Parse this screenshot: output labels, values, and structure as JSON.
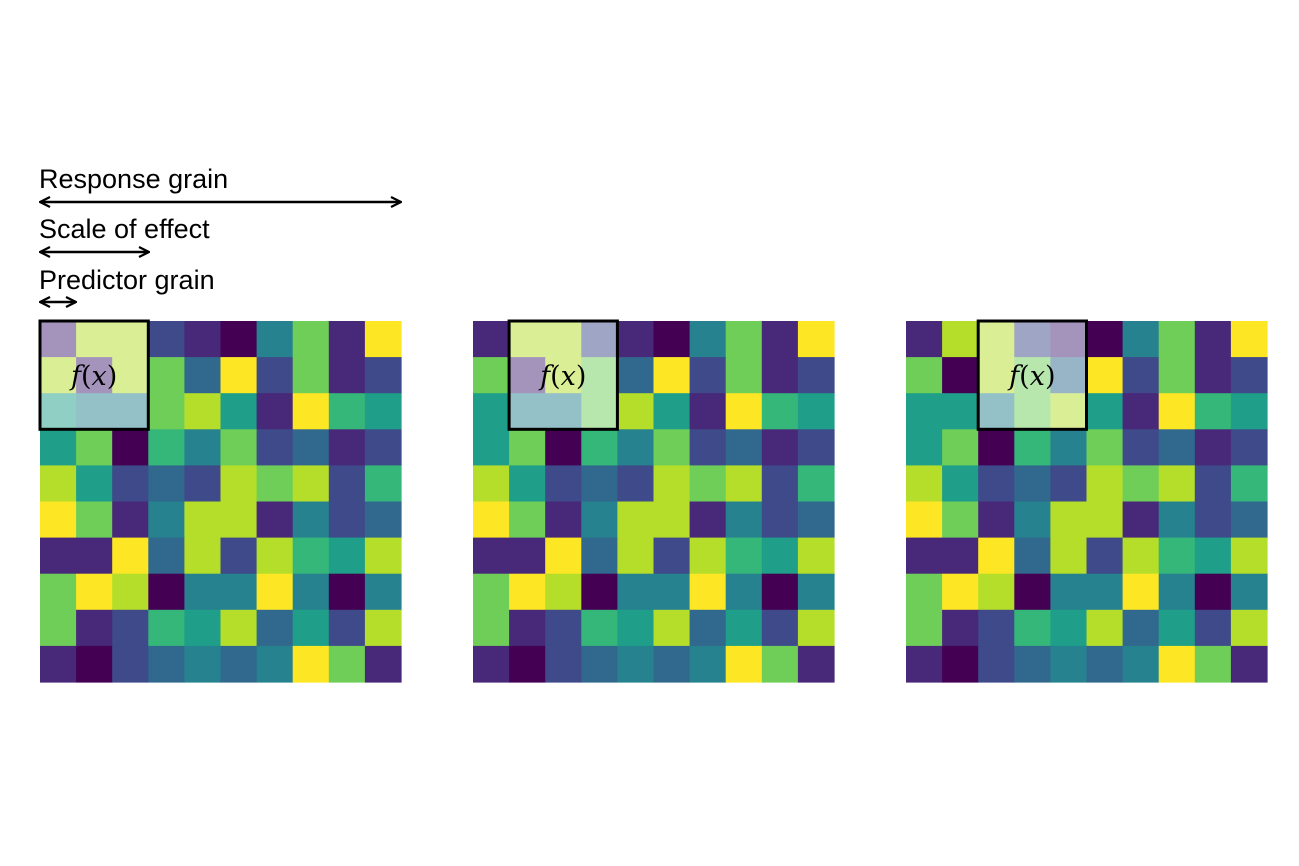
{
  "labels": {
    "response_grain": "Response grain",
    "scale_of_effect": "Scale of effect",
    "predictor_grain": "Predictor grain"
  },
  "function_label": {
    "f": "f",
    "open": "(",
    "x": "x",
    "close": ")"
  },
  "colors": {
    "viridis": [
      "#440154",
      "#482878",
      "#3e4a89",
      "#31688e",
      "#26828e",
      "#1f9e89",
      "#35b779",
      "#6ece58",
      "#b5de2b",
      "#fde725"
    ],
    "window_outline": "#000000",
    "window_overlay": "#ffffff",
    "arrow": "#000000"
  },
  "grid_size": 10,
  "window_cells": 3,
  "panels": [
    {
      "name": "panel-1",
      "window_col": 0,
      "values": [
        [
          1,
          8,
          8,
          2,
          1,
          0,
          4,
          7,
          1,
          9
        ],
        [
          8,
          1,
          8,
          7,
          3,
          9,
          2,
          7,
          1,
          2
        ],
        [
          5,
          4,
          4,
          7,
          8,
          5,
          1,
          9,
          6,
          5
        ],
        [
          5,
          7,
          0,
          6,
          4,
          7,
          2,
          3,
          1,
          2
        ],
        [
          8,
          5,
          2,
          3,
          2,
          8,
          7,
          8,
          2,
          6
        ],
        [
          9,
          7,
          1,
          4,
          8,
          8,
          1,
          4,
          2,
          3
        ],
        [
          1,
          1,
          9,
          3,
          8,
          2,
          8,
          6,
          5,
          8
        ],
        [
          7,
          9,
          8,
          0,
          4,
          4,
          9,
          4,
          0,
          4
        ],
        [
          7,
          1,
          2,
          6,
          5,
          8,
          3,
          5,
          2,
          8
        ],
        [
          1,
          0,
          2,
          3,
          4,
          3,
          4,
          9,
          7,
          1
        ]
      ]
    },
    {
      "name": "panel-2",
      "window_col": 1,
      "values": [
        [
          1,
          8,
          8,
          2,
          1,
          0,
          4,
          7,
          1,
          9
        ],
        [
          7,
          1,
          8,
          7,
          3,
          9,
          2,
          7,
          1,
          2
        ],
        [
          5,
          4,
          4,
          7,
          8,
          5,
          1,
          9,
          6,
          5
        ],
        [
          5,
          7,
          0,
          6,
          4,
          7,
          2,
          3,
          1,
          2
        ],
        [
          8,
          5,
          2,
          3,
          2,
          8,
          7,
          8,
          2,
          6
        ],
        [
          9,
          7,
          1,
          4,
          8,
          8,
          1,
          4,
          2,
          3
        ],
        [
          1,
          1,
          9,
          3,
          8,
          2,
          8,
          6,
          5,
          8
        ],
        [
          7,
          9,
          8,
          0,
          4,
          4,
          9,
          4,
          0,
          4
        ],
        [
          7,
          1,
          2,
          6,
          5,
          8,
          3,
          5,
          2,
          8
        ],
        [
          1,
          0,
          2,
          3,
          4,
          3,
          4,
          9,
          7,
          1
        ]
      ]
    },
    {
      "name": "panel-3",
      "window_col": 2,
      "values": [
        [
          1,
          8,
          8,
          2,
          1,
          0,
          4,
          7,
          1,
          9
        ],
        [
          7,
          0,
          8,
          7,
          3,
          9,
          2,
          7,
          1,
          2
        ],
        [
          5,
          5,
          4,
          7,
          8,
          5,
          1,
          9,
          6,
          5
        ],
        [
          5,
          7,
          0,
          6,
          4,
          7,
          2,
          3,
          1,
          2
        ],
        [
          8,
          5,
          2,
          3,
          2,
          8,
          7,
          8,
          2,
          6
        ],
        [
          9,
          7,
          1,
          4,
          8,
          8,
          1,
          4,
          2,
          3
        ],
        [
          1,
          1,
          9,
          3,
          8,
          2,
          8,
          6,
          5,
          8
        ],
        [
          7,
          9,
          8,
          0,
          4,
          4,
          9,
          4,
          0,
          4
        ],
        [
          7,
          1,
          2,
          6,
          5,
          8,
          3,
          5,
          2,
          8
        ],
        [
          1,
          0,
          2,
          3,
          4,
          3,
          4,
          9,
          7,
          1
        ]
      ]
    }
  ]
}
